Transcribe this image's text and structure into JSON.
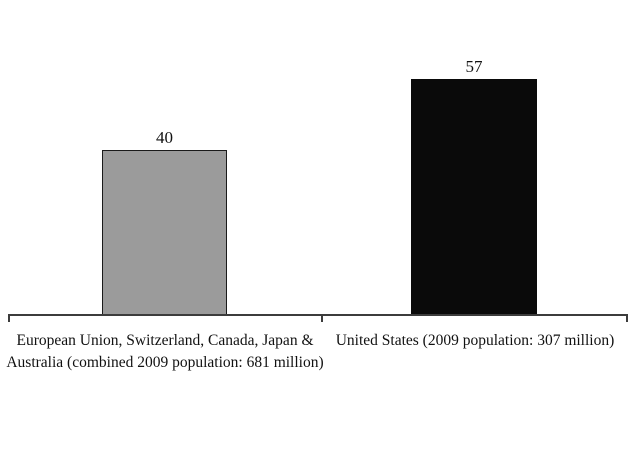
{
  "page": {
    "background": "#ffffff",
    "text_color": "#111111",
    "axis_color": "#3c3c3c"
  },
  "chart_data": {
    "type": "bar",
    "title": "",
    "xlabel": "",
    "ylabel": "",
    "categories": [
      "European Union, Switzerland, Canada, Japan & Australia (combined 2009 population: 681 million)",
      "United States (2009 population: 307 million)"
    ],
    "values": [
      40,
      57
    ],
    "value_labels": [
      "40",
      "57"
    ],
    "bar_colors": [
      "#9b9b9b",
      "#0a0a0a"
    ],
    "bar_border_colors": [
      "#1a1a1a",
      "#0a0a0a"
    ],
    "ylim": [
      0,
      60
    ],
    "grid": false,
    "legend": null,
    "axis": {
      "x_axis_visible": true,
      "y_axis_visible": false,
      "tick_count": 3
    }
  }
}
